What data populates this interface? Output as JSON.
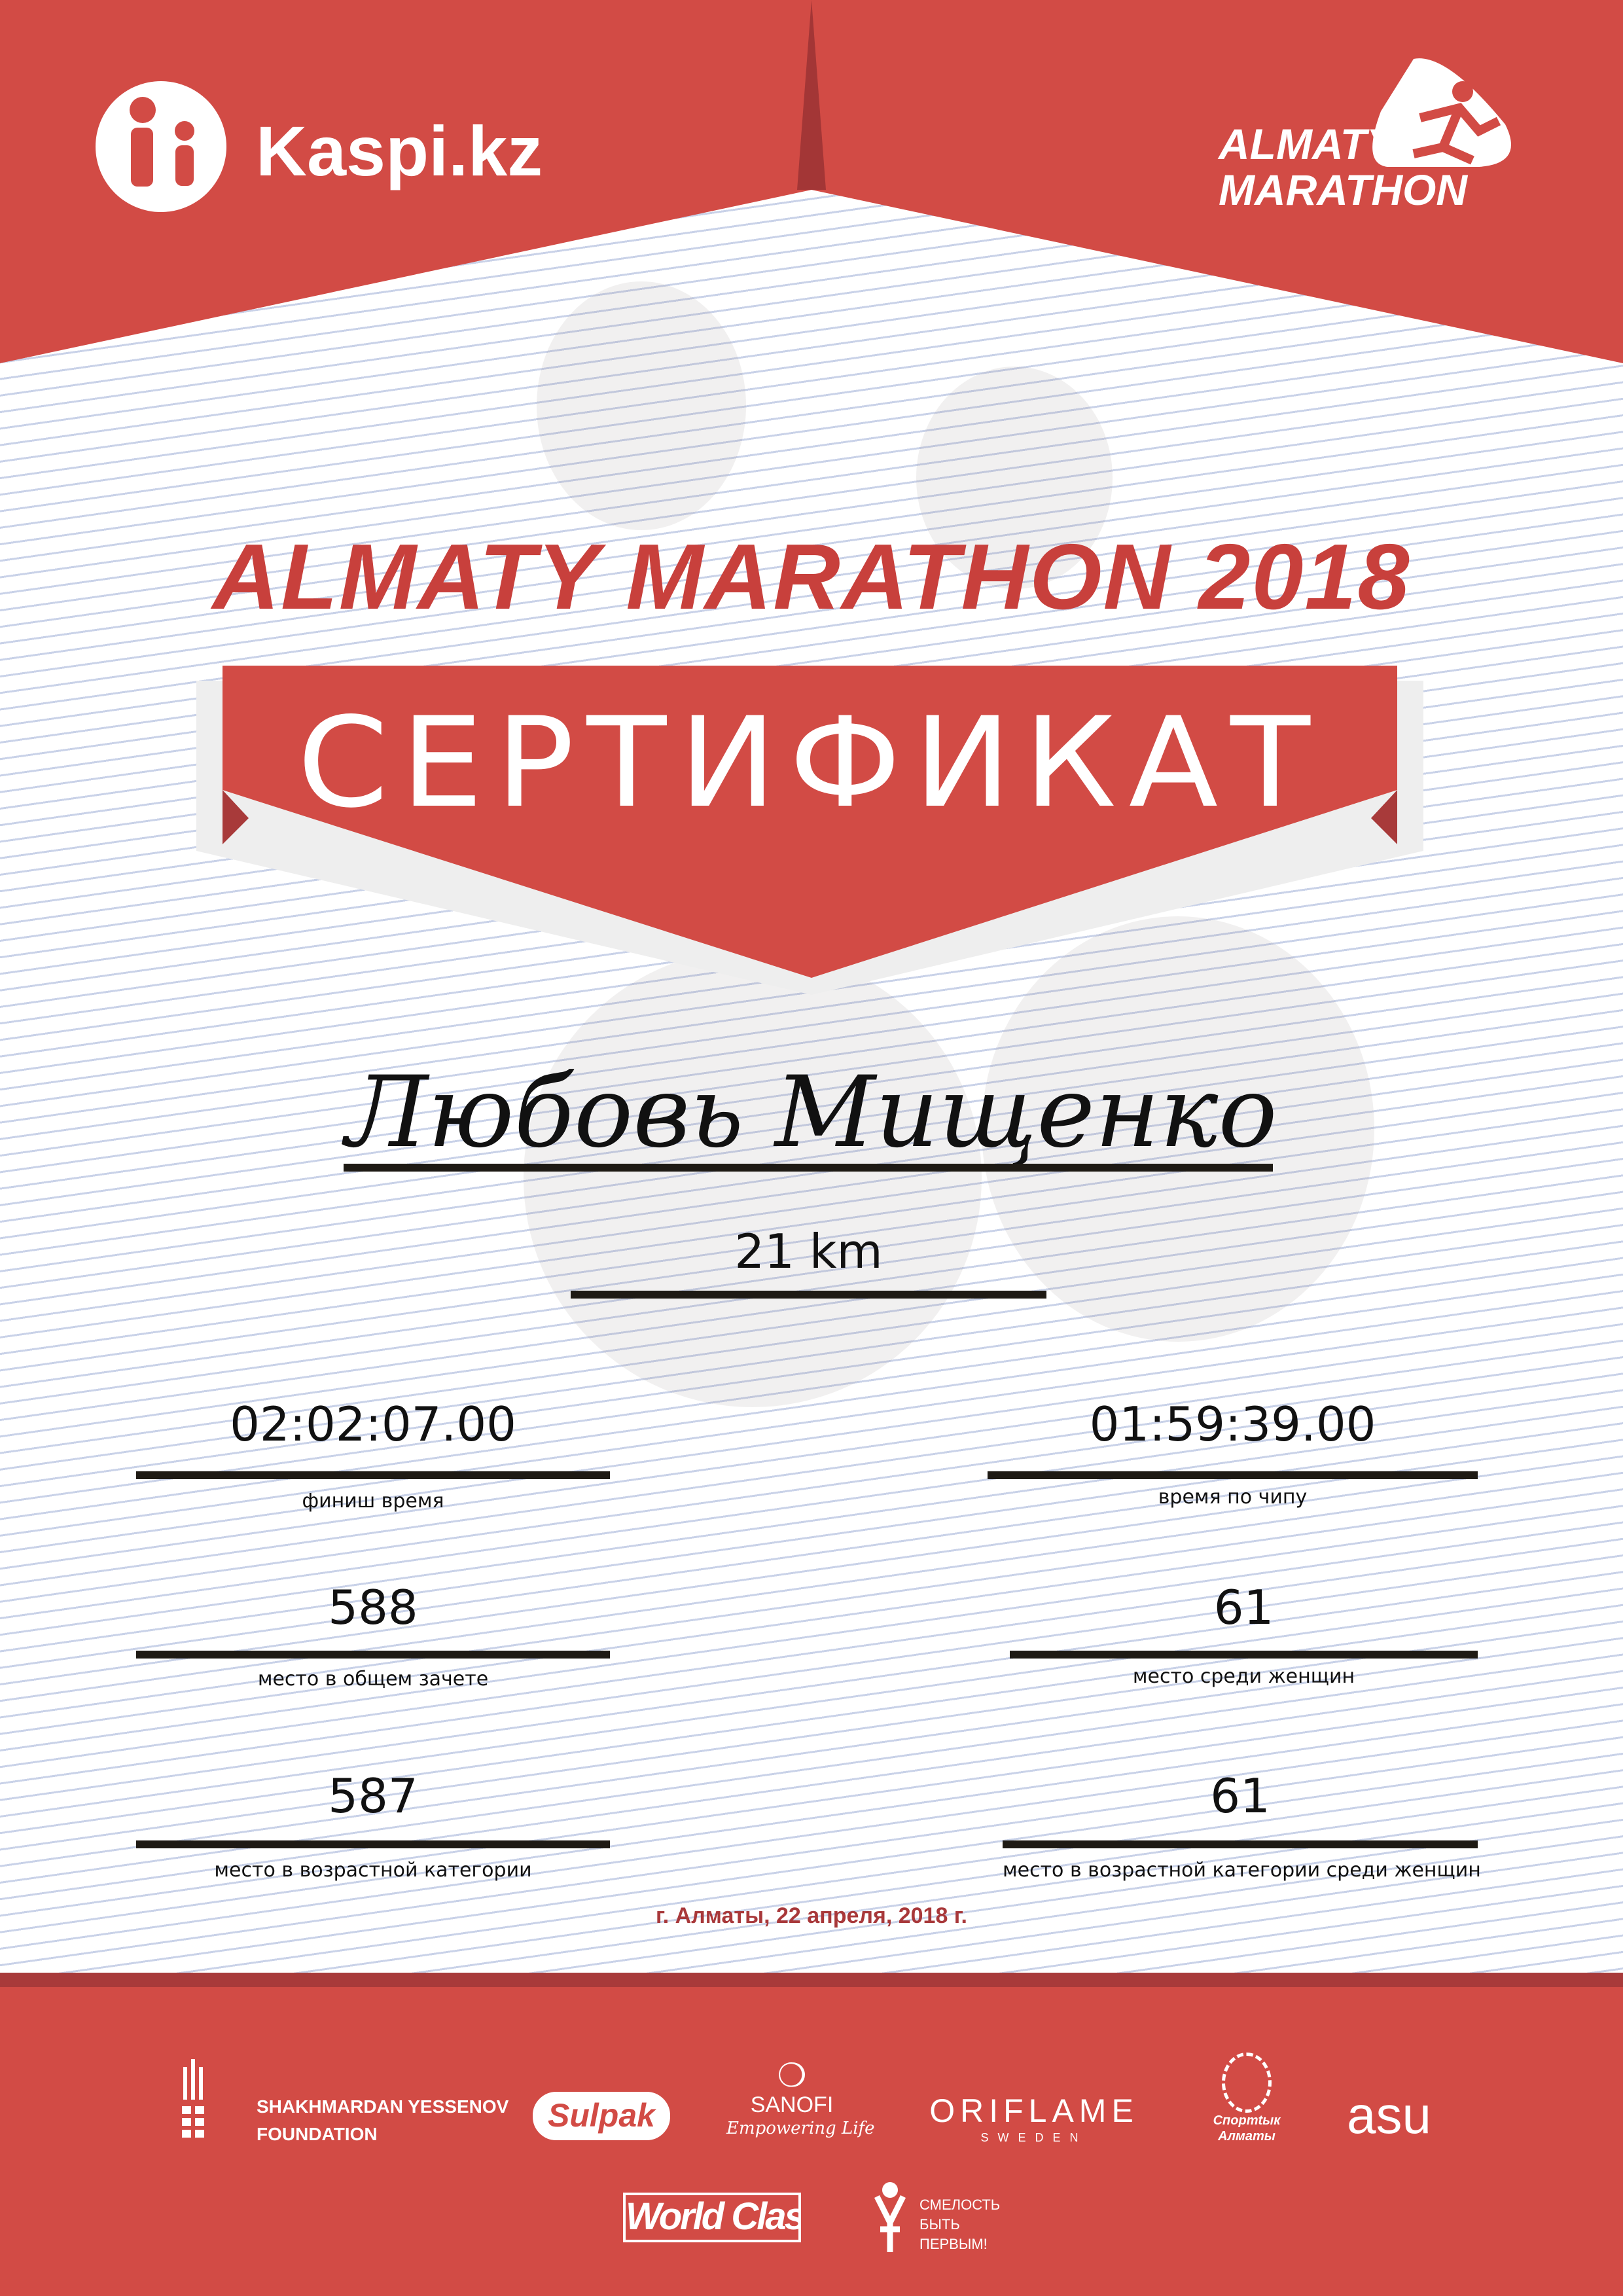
{
  "header": {
    "kaspi_logo": "Kaspi.kz",
    "marathon_logo": [
      "ALMATY",
      "MARATHON"
    ]
  },
  "title": "ALMATY MARATHON 2018",
  "banner": "СЕРТИФИКАТ",
  "participant": {
    "name": "Любовь Мищенко",
    "distance": "21 km"
  },
  "results": [
    {
      "value": "02:02:07.00",
      "label": "финиш время"
    },
    {
      "value": "01:59:39.00",
      "label": "время по чипу"
    },
    {
      "value": "588",
      "label": "место в общем зачете"
    },
    {
      "value": "61",
      "label": "место среди женщин"
    },
    {
      "value": "587",
      "label": "место в возрастной категории"
    },
    {
      "value": "61",
      "label": "место в возрастной категории среди женщин"
    }
  ],
  "date": "г. Алматы, 22 апреля, 2018 г.",
  "colors": {
    "brand_red": "#d24b45",
    "title_red": "#c8403c",
    "date_red": "#a8383a"
  },
  "sponsors": {
    "yessenov": [
      "SHAKHMARDAN YESSENOV",
      "FOUNDATION"
    ],
    "sulpak": "Sulpak",
    "sanofi": "SANOFI",
    "sanofi_tag": "Empowering Life",
    "oriflame": "ORIFLAME",
    "oriflame_sub": "SWEDEN",
    "sport_almaty": [
      "Спортtык",
      "Алматы"
    ],
    "asu": "asu",
    "worldclass": "World Class",
    "fund": [
      "СМЕЛОСТЬ",
      "БЫТЬ",
      "ПЕРВЫМ!"
    ]
  }
}
